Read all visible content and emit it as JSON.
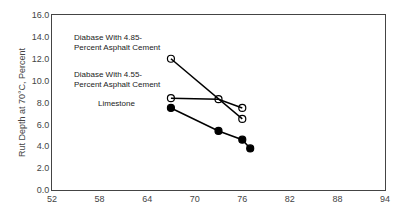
{
  "chart_data": {
    "type": "line",
    "ylabel": "Rut Depth at 70°C, Percent",
    "xlim": [
      52,
      94
    ],
    "ylim": [
      0.0,
      16.0
    ],
    "xticks": [
      52,
      58,
      64,
      70,
      76,
      82,
      88,
      94
    ],
    "yticks": [
      {
        "value": 0,
        "label": "0.0"
      },
      {
        "value": 2,
        "label": "2.0"
      },
      {
        "value": 4,
        "label": "4.0"
      },
      {
        "value": 6,
        "label": "6.0"
      },
      {
        "value": 8,
        "label": "8.0"
      },
      {
        "value": 10,
        "label": "10.0"
      },
      {
        "value": 12,
        "label": "12.0"
      },
      {
        "value": 14,
        "label": "14.0"
      },
      {
        "value": 16,
        "label": "16.0"
      }
    ],
    "grid": false,
    "series": [
      {
        "x": [
          67,
          76
        ],
        "values": [
          12.0,
          6.5
        ],
        "color": "black",
        "marker": "circle-open"
      },
      {
        "x": [
          67,
          73,
          76
        ],
        "values": [
          8.4,
          8.3,
          7.5
        ],
        "color": "black",
        "marker": "circle-open"
      },
      {
        "x": [
          67,
          73,
          76,
          77
        ],
        "values": [
          7.5,
          5.4,
          4.6,
          3.8
        ],
        "color": "black",
        "marker": "circle"
      }
    ],
    "annotations": [
      {
        "text": "Diabase With 4.85-\nPercent Asphalt Cement",
        "x": 54.5,
        "y": 14.5
      },
      {
        "text": "Diabase With 4.55-\nPercent Asphalt Cement",
        "x": 54.5,
        "y": 11.2
      },
      {
        "text": "Limestone",
        "x": 57.5,
        "y": 8.5
      }
    ]
  }
}
